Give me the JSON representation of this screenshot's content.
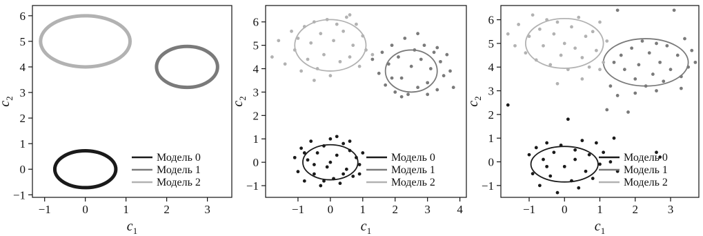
{
  "chart_data": [
    {
      "type": "line",
      "xlabel": "c1",
      "ylabel": "c2",
      "xlim": [
        -1.3,
        3.6
      ],
      "ylim": [
        -1.1,
        6.4
      ],
      "xticks": [
        "−1",
        "0",
        "1",
        "2",
        "3"
      ],
      "yticks": [
        "−1",
        "0",
        "1",
        "2",
        "3",
        "4",
        "5",
        "6"
      ],
      "grid": false,
      "legend": "bottom-right",
      "series": [
        {
          "name": "Модель 0",
          "color": "#1a1a1a",
          "center": [
            0.0,
            0.0
          ],
          "radii": [
            0.75,
            0.72
          ],
          "points": []
        },
        {
          "name": "Модель 1",
          "color": "#7a7a7a",
          "center": [
            2.5,
            4.0
          ],
          "radii": [
            0.75,
            0.8
          ],
          "points": []
        },
        {
          "name": "Модель 2",
          "color": "#b2b2b2",
          "center": [
            0.0,
            5.0
          ],
          "radii": [
            1.1,
            1.0
          ],
          "points": []
        }
      ]
    },
    {
      "type": "scatter",
      "xlabel": "c1",
      "ylabel": "c2",
      "xlim": [
        -2.0,
        4.2
      ],
      "ylim": [
        -1.5,
        6.7
      ],
      "xticks": [
        "−1",
        "0",
        "1",
        "2",
        "3",
        "4"
      ],
      "yticks": [
        "−1",
        "0",
        "1",
        "2",
        "3",
        "4",
        "5",
        "6"
      ],
      "grid": false,
      "legend": "bottom-right",
      "series": [
        {
          "name": "Модель 0",
          "color": "#1a1a1a",
          "center": [
            0.0,
            0.0
          ],
          "radii": [
            0.85,
            0.75
          ],
          "points": [
            [
              -1.1,
              0.2
            ],
            [
              -1.0,
              -0.4
            ],
            [
              -0.9,
              0.6
            ],
            [
              -0.8,
              -0.8
            ],
            [
              -0.7,
              0.1
            ],
            [
              -0.6,
              0.9
            ],
            [
              -0.5,
              -0.5
            ],
            [
              -0.4,
              0.4
            ],
            [
              -0.3,
              -1.0
            ],
            [
              -0.2,
              0.7
            ],
            [
              -0.1,
              -0.2
            ],
            [
              0.0,
              1.0
            ],
            [
              0.1,
              -0.7
            ],
            [
              0.2,
              0.3
            ],
            [
              0.3,
              -0.9
            ],
            [
              0.4,
              0.8
            ],
            [
              0.5,
              -0.3
            ],
            [
              0.6,
              0.5
            ],
            [
              0.7,
              -0.6
            ],
            [
              0.8,
              0.2
            ],
            [
              0.9,
              -0.1
            ],
            [
              1.0,
              0.4
            ],
            [
              0.2,
              1.1
            ],
            [
              -0.5,
              -0.1
            ],
            [
              0.0,
              0.0
            ],
            [
              0.4,
              -0.5
            ],
            [
              -0.8,
              0.4
            ],
            [
              0.6,
              0.9
            ],
            [
              -0.2,
              -0.8
            ],
            [
              0.9,
              -0.5
            ]
          ]
        },
        {
          "name": "Модель 1",
          "color": "#7a7a7a",
          "center": [
            2.5,
            3.9
          ],
          "radii": [
            0.8,
            0.9
          ],
          "points": [
            [
              1.3,
              4.4
            ],
            [
              1.5,
              3.8
            ],
            [
              1.6,
              4.7
            ],
            [
              1.7,
              3.3
            ],
            [
              1.8,
              4.2
            ],
            [
              1.9,
              5.0
            ],
            [
              2.0,
              3.0
            ],
            [
              2.1,
              4.5
            ],
            [
              2.2,
              3.6
            ],
            [
              2.3,
              5.3
            ],
            [
              2.4,
              2.9
            ],
            [
              2.5,
              4.1
            ],
            [
              2.6,
              4.8
            ],
            [
              2.7,
              3.2
            ],
            [
              2.8,
              4.4
            ],
            [
              2.9,
              5.0
            ],
            [
              3.0,
              3.4
            ],
            [
              3.1,
              4.0
            ],
            [
              3.2,
              4.7
            ],
            [
              3.3,
              3.1
            ],
            [
              3.4,
              4.3
            ],
            [
              3.5,
              3.7
            ],
            [
              3.6,
              4.6
            ],
            [
              3.7,
              3.9
            ],
            [
              3.8,
              3.2
            ],
            [
              2.2,
              2.8
            ],
            [
              2.7,
              5.5
            ],
            [
              3.0,
              2.9
            ],
            [
              1.9,
              3.6
            ],
            [
              3.3,
              4.9
            ]
          ]
        },
        {
          "name": "Модель 2",
          "color": "#b2b2b2",
          "center": [
            0.0,
            5.0
          ],
          "radii": [
            1.1,
            1.1
          ],
          "points": [
            [
              -1.8,
              4.5
            ],
            [
              -1.6,
              5.2
            ],
            [
              -1.4,
              4.2
            ],
            [
              -1.2,
              5.6
            ],
            [
              -1.1,
              4.8
            ],
            [
              -1.0,
              5.3
            ],
            [
              -0.9,
              3.9
            ],
            [
              -0.8,
              5.8
            ],
            [
              -0.7,
              4.4
            ],
            [
              -0.6,
              5.1
            ],
            [
              -0.5,
              6.0
            ],
            [
              -0.4,
              4.0
            ],
            [
              -0.3,
              5.5
            ],
            [
              -0.2,
              4.6
            ],
            [
              -0.1,
              6.1
            ],
            [
              0.0,
              3.7
            ],
            [
              0.1,
              5.2
            ],
            [
              0.2,
              5.9
            ],
            [
              0.3,
              4.3
            ],
            [
              0.4,
              5.6
            ],
            [
              0.5,
              6.2
            ],
            [
              0.6,
              4.5
            ],
            [
              0.7,
              5.0
            ],
            [
              0.8,
              5.9
            ],
            [
              0.9,
              4.1
            ],
            [
              1.0,
              5.4
            ],
            [
              1.1,
              4.8
            ],
            [
              1.3,
              4.6
            ],
            [
              -0.5,
              3.5
            ],
            [
              0.6,
              6.3
            ]
          ]
        }
      ]
    },
    {
      "type": "scatter",
      "xlabel": "c1",
      "ylabel": "c2",
      "xlim": [
        -1.8,
        3.8
      ],
      "ylim": [
        -1.5,
        6.6
      ],
      "xticks": [
        "−1",
        "0",
        "1",
        "2",
        "3"
      ],
      "yticks": [
        "−1",
        "0",
        "1",
        "2",
        "3",
        "4",
        "5",
        "6"
      ],
      "grid": false,
      "legend": "bottom-right",
      "series": [
        {
          "name": "Модель 0",
          "color": "#1a1a1a",
          "center": [
            0.0,
            -0.1
          ],
          "radii": [
            0.95,
            0.75
          ],
          "points": [
            [
              -1.6,
              2.4
            ],
            [
              -1.0,
              0.3
            ],
            [
              -0.9,
              -0.5
            ],
            [
              -0.8,
              0.6
            ],
            [
              -0.7,
              -1.0
            ],
            [
              -0.6,
              0.1
            ],
            [
              -0.5,
              0.8
            ],
            [
              -0.4,
              -0.6
            ],
            [
              -0.3,
              0.4
            ],
            [
              -0.2,
              -1.3
            ],
            [
              -0.1,
              0.7
            ],
            [
              0.0,
              -0.2
            ],
            [
              0.1,
              1.8
            ],
            [
              0.2,
              -0.8
            ],
            [
              0.3,
              0.5
            ],
            [
              0.4,
              -1.1
            ],
            [
              0.5,
              0.9
            ],
            [
              0.6,
              -0.4
            ],
            [
              0.7,
              0.3
            ],
            [
              0.8,
              -0.7
            ],
            [
              0.9,
              0.8
            ],
            [
              1.0,
              -0.1
            ],
            [
              1.1,
              0.4
            ],
            [
              1.3,
              0.0
            ],
            [
              1.4,
              1.0
            ],
            [
              1.5,
              -0.4
            ],
            [
              2.6,
              0.4
            ],
            [
              2.7,
              0.2
            ],
            [
              -0.5,
              -0.2
            ],
            [
              0.3,
              0.1
            ]
          ]
        },
        {
          "name": "Модель 1",
          "color": "#7a7a7a",
          "center": [
            2.3,
            4.2
          ],
          "radii": [
            1.2,
            1.0
          ],
          "points": [
            [
              1.3,
              3.2
            ],
            [
              1.5,
              2.8
            ],
            [
              1.6,
              4.5
            ],
            [
              1.7,
              3.9
            ],
            [
              1.8,
              2.1
            ],
            [
              1.9,
              4.8
            ],
            [
              2.0,
              3.5
            ],
            [
              2.1,
              4.1
            ],
            [
              2.2,
              5.1
            ],
            [
              2.3,
              3.2
            ],
            [
              2.4,
              4.6
            ],
            [
              2.5,
              3.7
            ],
            [
              2.6,
              5.0
            ],
            [
              2.7,
              4.2
            ],
            [
              2.8,
              3.4
            ],
            [
              2.9,
              4.9
            ],
            [
              3.0,
              3.9
            ],
            [
              3.1,
              6.4
            ],
            [
              3.2,
              4.5
            ],
            [
              3.3,
              3.6
            ],
            [
              3.4,
              5.2
            ],
            [
              3.5,
              4.0
            ],
            [
              3.6,
              4.7
            ],
            [
              3.7,
              4.2
            ],
            [
              1.5,
              6.4
            ],
            [
              1.2,
              2.2
            ],
            [
              2.0,
              2.9
            ],
            [
              2.6,
              3.0
            ],
            [
              3.3,
              3.1
            ],
            [
              1.4,
              4.2
            ]
          ]
        },
        {
          "name": "Модель 2",
          "color": "#b2b2b2",
          "center": [
            0.0,
            5.0
          ],
          "radii": [
            1.1,
            1.05
          ],
          "points": [
            [
              -1.6,
              5.4
            ],
            [
              -1.4,
              4.9
            ],
            [
              -1.3,
              5.8
            ],
            [
              -1.1,
              4.6
            ],
            [
              -1.0,
              5.3
            ],
            [
              -0.9,
              6.2
            ],
            [
              -0.8,
              4.3
            ],
            [
              -0.7,
              5.6
            ],
            [
              -0.6,
              4.9
            ],
            [
              -0.5,
              6.0
            ],
            [
              -0.4,
              4.1
            ],
            [
              -0.3,
              5.4
            ],
            [
              -0.2,
              5.9
            ],
            [
              -0.1,
              4.5
            ],
            [
              0.0,
              5.0
            ],
            [
              0.1,
              3.9
            ],
            [
              0.2,
              5.7
            ],
            [
              0.3,
              4.8
            ],
            [
              0.4,
              6.1
            ],
            [
              0.5,
              4.4
            ],
            [
              0.6,
              5.3
            ],
            [
              0.7,
              4.0
            ],
            [
              0.8,
              5.5
            ],
            [
              0.9,
              4.7
            ],
            [
              1.0,
              5.9
            ],
            [
              1.1,
              4.2
            ],
            [
              1.2,
              5.1
            ],
            [
              -0.2,
              3.3
            ],
            [
              0.5,
              3.5
            ],
            [
              1.0,
              3.9
            ]
          ]
        }
      ]
    }
  ]
}
